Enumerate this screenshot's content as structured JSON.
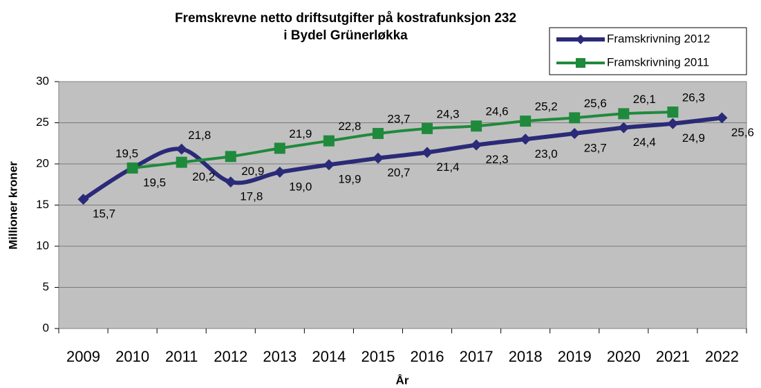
{
  "chart_data": {
    "type": "line",
    "title": [
      "Fremskrevne netto driftsutgifter på kostrafunksjon 232",
      "i Bydel Grünerløkka"
    ],
    "x_label": "År",
    "y_label": "Millioner kroner",
    "categories": [
      "2009",
      "2010",
      "2011",
      "2012",
      "2013",
      "2014",
      "2015",
      "2016",
      "2017",
      "2018",
      "2019",
      "2020",
      "2021",
      "2022"
    ],
    "series": [
      {
        "name": "Framskrivning 2012",
        "color": "#2b2a78",
        "marker": "diamond",
        "values": [
          15.7,
          19.5,
          21.8,
          17.8,
          19.0,
          19.9,
          20.7,
          21.4,
          22.3,
          23.0,
          23.7,
          24.4,
          24.9,
          25.6
        ],
        "value_labels": [
          "15,7",
          "19,5",
          "21,8",
          "17,8",
          "19,0",
          "19,9",
          "20,7",
          "21,4",
          "22,3",
          "23,0",
          "23,7",
          "24,4",
          "24,9",
          "25,6"
        ]
      },
      {
        "name": "Framskrivning 2011",
        "color": "#1f8a3c",
        "marker": "square",
        "values": [
          null,
          19.5,
          20.2,
          20.9,
          21.9,
          22.8,
          23.7,
          24.3,
          24.6,
          25.2,
          25.6,
          26.1,
          26.3,
          null
        ],
        "value_labels": [
          null,
          "19,5",
          "20,2",
          "20,9",
          "21,9",
          "22,8",
          "23,7",
          "24,3",
          "24,6",
          "25,2",
          "25,6",
          "26,1",
          "26,3",
          null
        ]
      }
    ],
    "ylim": [
      0,
      30
    ],
    "yticks": [
      0,
      5,
      10,
      15,
      20,
      25,
      30
    ],
    "grid": true,
    "legend": "top-right"
  }
}
